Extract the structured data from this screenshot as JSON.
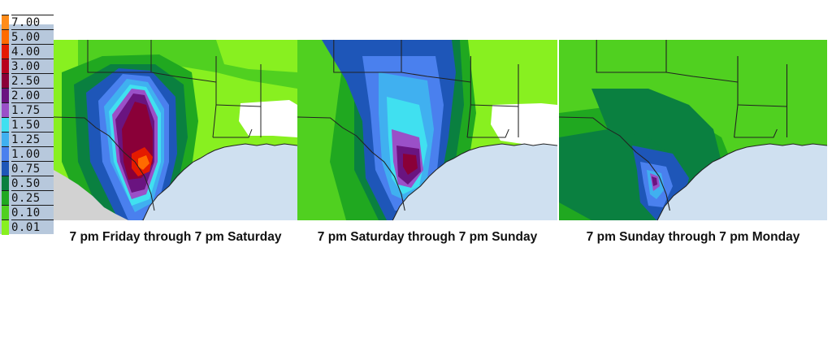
{
  "legend": {
    "levels": [
      {
        "label": "7.00",
        "color": "#ff8c1a"
      },
      {
        "label": "5.00",
        "color": "#ff6a00"
      },
      {
        "label": "4.00",
        "color": "#e41a00"
      },
      {
        "label": "3.00",
        "color": "#b8001c"
      },
      {
        "label": "2.50",
        "color": "#8a0038"
      },
      {
        "label": "2.00",
        "color": "#6a1480"
      },
      {
        "label": "1.75",
        "color": "#9a50c8"
      },
      {
        "label": "1.50",
        "color": "#40e0f0"
      },
      {
        "label": "1.25",
        "color": "#40b0f0"
      },
      {
        "label": "1.00",
        "color": "#4a80ee"
      },
      {
        "label": "0.75",
        "color": "#1e56b8"
      },
      {
        "label": "0.50",
        "color": "#0a8040"
      },
      {
        "label": "0.25",
        "color": "#20a820"
      },
      {
        "label": "0.10",
        "color": "#50d020"
      },
      {
        "label": "0.01",
        "color": "#88f020"
      }
    ]
  },
  "panels": [
    {
      "caption": "7 pm Friday through 7 pm Saturday"
    },
    {
      "caption": "7 pm Saturday through 7 pm Sunday"
    },
    {
      "caption": "7 pm Sunday through 7 pm Monday"
    }
  ],
  "map_colors": {
    "gulf": "#cfe0f0",
    "mexico": "#d2d2d2",
    "no_rain": "#ffffff",
    "borders": "#222222"
  }
}
